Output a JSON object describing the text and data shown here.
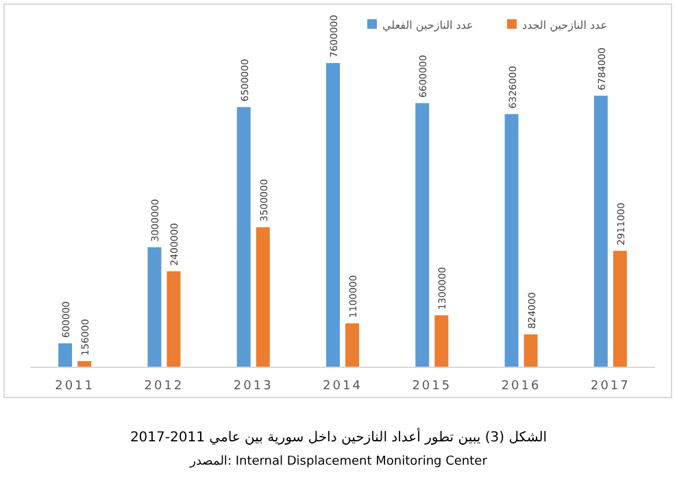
{
  "chart_data": {
    "type": "bar",
    "categories": [
      "2011",
      "2012",
      "2013",
      "2014",
      "2015",
      "2016",
      "2017"
    ],
    "series": [
      {
        "name": "عدد النازحين الفعلي",
        "color": "#5b9bd5",
        "values": [
          600000,
          3000000,
          6500000,
          7600000,
          6600000,
          6326000,
          6784000
        ]
      },
      {
        "name": "عدد النازحين الجدد",
        "color": "#ed7d31",
        "values": [
          156000,
          2400000,
          3500000,
          1100000,
          1300000,
          824000,
          2911000
        ]
      }
    ],
    "data_labels": true,
    "legend": "top",
    "annotations": [
      "الشكل (3) يبين تطور أعداد النازحين داخل سورية بين عامي 2011-2017",
      "المصدر: Internal Displacement Monitoring Center"
    ]
  }
}
